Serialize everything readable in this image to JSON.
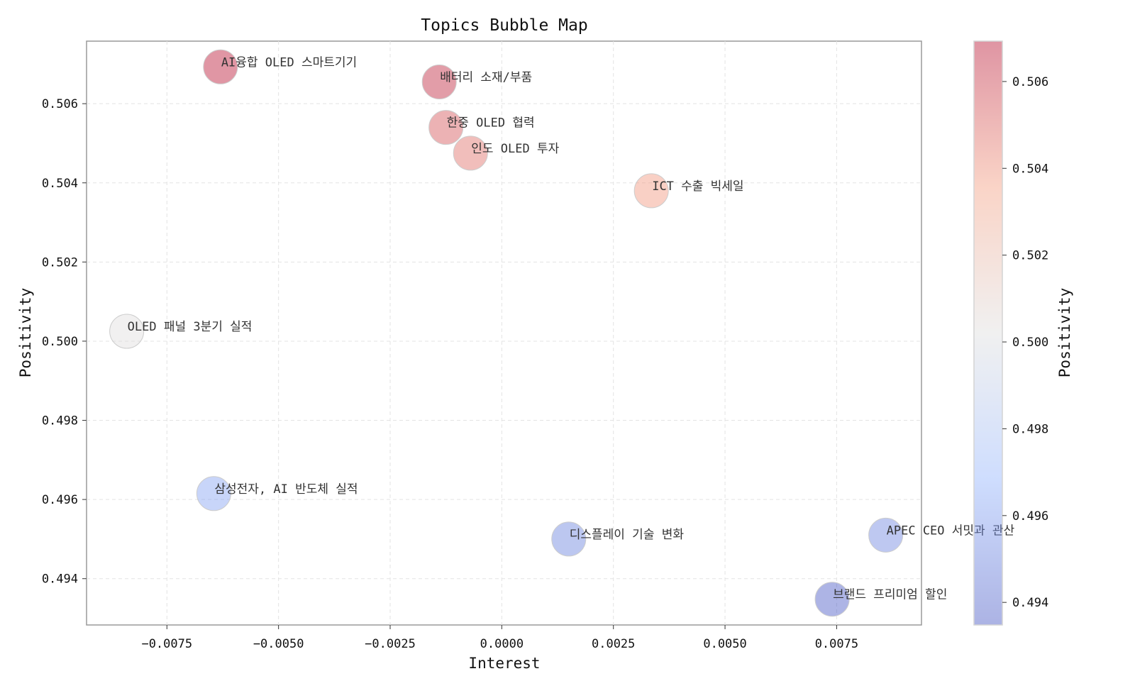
{
  "chart_data": {
    "type": "scatter",
    "title": "Topics Bubble Map",
    "xlabel": "Interest",
    "ylabel": "Positivity",
    "xlim": [
      -0.0093,
      0.0094
    ],
    "ylim": [
      0.49283,
      0.50758
    ],
    "x_ticks": [
      -0.0075,
      -0.005,
      -0.0025,
      0.0,
      0.0025,
      0.005,
      0.0075
    ],
    "x_tick_labels": [
      "−0.0075",
      "−0.0050",
      "−0.0025",
      "0.0000",
      "0.0025",
      "0.0050",
      "0.0075"
    ],
    "y_ticks": [
      0.494,
      0.496,
      0.498,
      0.5,
      0.502,
      0.504,
      0.506
    ],
    "y_tick_labels": [
      "0.494",
      "0.496",
      "0.498",
      "0.500",
      "0.502",
      "0.504",
      "0.506"
    ],
    "grid": true,
    "colormap": "coolwarm",
    "colorbar": {
      "label": "Positivity",
      "range": [
        0.49348,
        0.50693
      ],
      "ticks": [
        0.494,
        0.496,
        0.498,
        0.5,
        0.502,
        0.504,
        0.506
      ],
      "tick_labels": [
        "0.494",
        "0.496",
        "0.498",
        "0.500",
        "0.502",
        "0.504",
        "0.506"
      ]
    },
    "points": [
      {
        "label": "AI융합 OLED 스마트기기",
        "x": -0.0063,
        "y": 0.50693
      },
      {
        "label": "배터리 소재/부품",
        "x": -0.0014,
        "y": 0.50655
      },
      {
        "label": "한중 OLED 협력",
        "x": -0.00125,
        "y": 0.5054
      },
      {
        "label": "인도 OLED 투자",
        "x": -0.0007,
        "y": 0.50475
      },
      {
        "label": "ICT 수출 빅세일",
        "x": 0.00335,
        "y": 0.5038
      },
      {
        "label": "OLED 패널 3분기 실적",
        "x": -0.0084,
        "y": 0.50025
      },
      {
        "label": "삼성전자, AI 반도체 실적",
        "x": -0.00645,
        "y": 0.49615
      },
      {
        "label": "디스플레이 기술 변화",
        "x": 0.0015,
        "y": 0.495
      },
      {
        "label": "APEC CEO 서밋과 관산",
        "x": 0.0086,
        "y": 0.4951
      },
      {
        "label": "브랜드 프리미엄 할인",
        "x": 0.0074,
        "y": 0.49348
      }
    ]
  }
}
